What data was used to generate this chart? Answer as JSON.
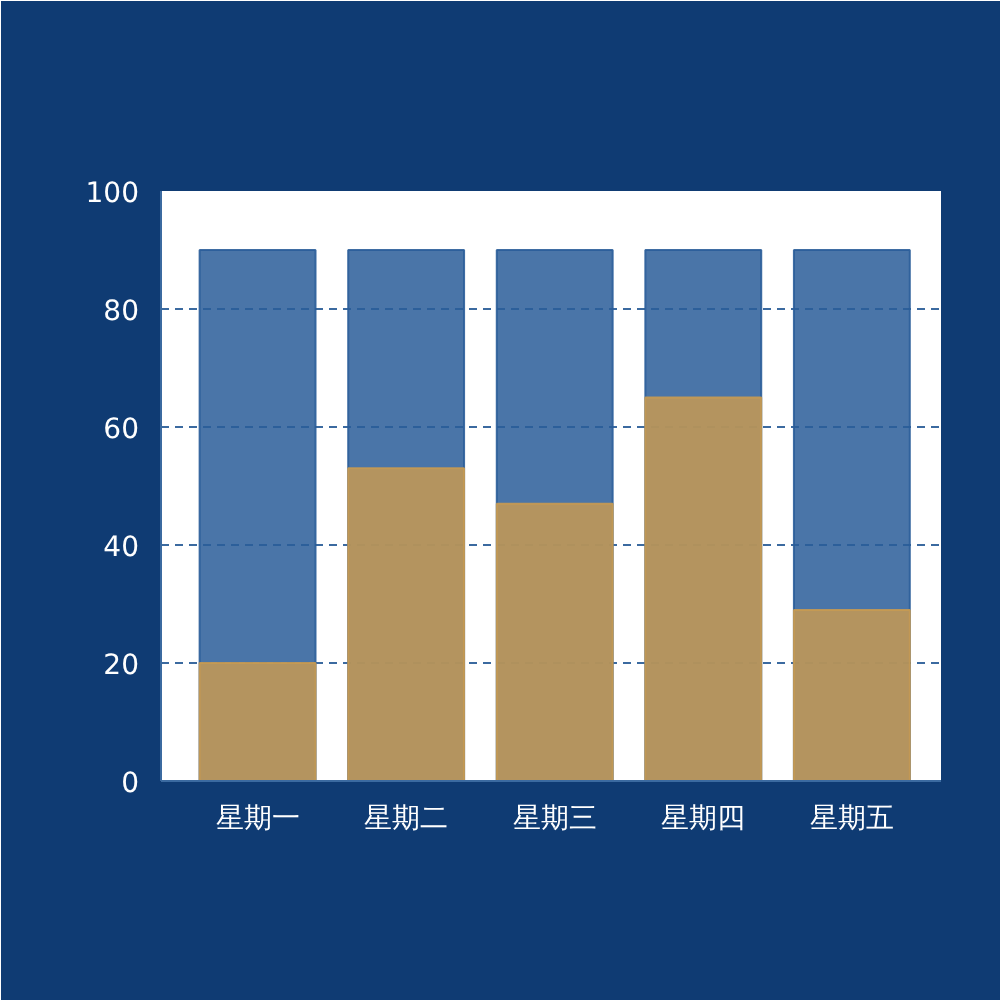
{
  "chart_data": {
    "type": "bar",
    "categories": [
      "星期一",
      "星期二",
      "星期三",
      "星期四",
      "星期五"
    ],
    "series": [
      {
        "color": "#2a5d99",
        "values": [
          90,
          90,
          90,
          90,
          90
        ]
      },
      {
        "color": "#c79a52",
        "values": [
          20,
          53,
          47,
          65,
          29
        ]
      }
    ],
    "ylim": [
      0,
      100
    ],
    "yticks": [
      0,
      20,
      40,
      60,
      80,
      100
    ],
    "grid": "y"
  }
}
